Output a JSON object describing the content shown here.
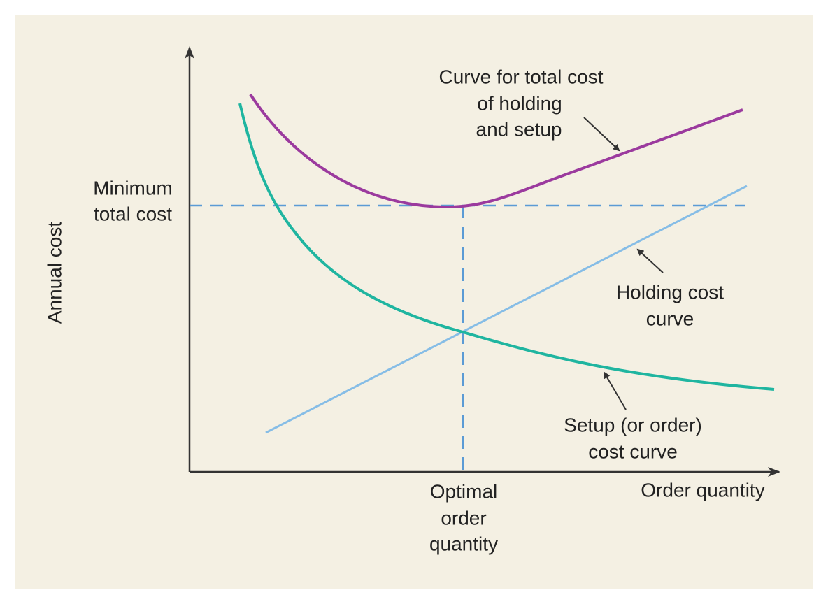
{
  "axes": {
    "y_label": "Annual cost",
    "x_label": "Order quantity"
  },
  "labels": {
    "minimum_total_cost": [
      "Minimum",
      "total cost"
    ],
    "optimal_order_quantity": [
      "Optimal",
      "order",
      "quantity"
    ],
    "total_cost_curve": [
      "Curve for total cost",
      "of holding",
      "and setup"
    ],
    "holding_cost_curve": [
      "Holding cost",
      "curve"
    ],
    "setup_cost_curve": [
      "Setup (or order)",
      "cost curve"
    ]
  }
}
